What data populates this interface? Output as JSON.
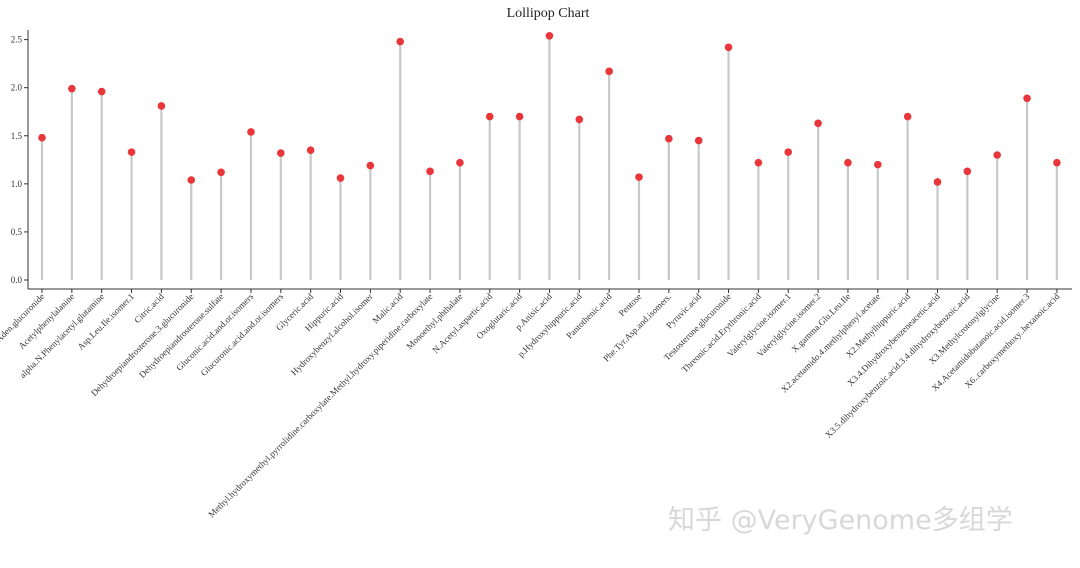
{
  "chart_data": {
    "type": "lollipop",
    "title": "Lollipop Chart",
    "xlabel": "",
    "ylabel": "",
    "ylim": [
      0,
      2.6
    ],
    "yticks": [
      "0.0",
      "0.5",
      "1.0",
      "1.5",
      "2.0",
      "2.5"
    ],
    "grid": false,
    "colors": {
      "point": "#e8363a",
      "stem": "#c8c8c8",
      "axis": "#333333"
    },
    "categories": [
      "Aden.glucuronide",
      "Acetylphenylalanine",
      "alpha.N.Phenylacetyl.glutamine",
      "Asp.Leu.Ile.isomer.1",
      "Citric.acid",
      "Dehydroepiandrosterone.3.glucuronide",
      "Dehydroepiandrosterone.sulfate",
      "Gluconic.acid.and.or.isomers",
      "Glucuronic.acid.and.or.isomers",
      "Glyceric.acid",
      "Hippuric.acid",
      "Hydroxybenzyl.alcohol.isomer",
      "Malic.acid",
      "Methyl.hydroxymethyl.pyrrolidine.carboxylate.Methyl.hydroxy.piperidine.carboxylate",
      "Monoethyl.phthalate",
      "N.Acetyl.aspartic.acid",
      "Oxoglutaric.acid",
      "p.Anisic.acid",
      "p.Hydroxyhippuric.acid",
      "Pantothenic.acid",
      "Pentose",
      "Phe.Tyr.Asp.and.isomers.",
      "Pyruvic.acid",
      "Testosterone.glucuronide",
      "Threonic.acid.Erythronic.acid",
      "Valerylglycine.isomer.1",
      "Valerylglycine.isomer.2",
      "X.gamma.Glu.Leu.Ile",
      "X2.acetamido.4.methylphenyl.acetate",
      "X2.Methylhippuric.acid",
      "X3.4.Dihydroxybenzeneacetic.acid",
      "X3.5.dihydroxybenzoic.acid.3.4.dihydroxybenzoic.acid",
      "X3.Methylcrotonylglycine",
      "X4.Acetamidobutanoic.acid.isomer.3",
      "X6..carboxymethoxy..hexanoic.acid"
    ],
    "values": [
      1.48,
      1.99,
      1.96,
      1.33,
      1.81,
      1.04,
      1.12,
      1.54,
      1.32,
      1.35,
      1.06,
      1.19,
      2.48,
      1.13,
      1.22,
      1.7,
      1.7,
      2.54,
      1.67,
      2.17,
      1.07,
      1.47,
      1.45,
      2.42,
      1.22,
      1.33,
      1.63,
      1.22,
      1.2,
      1.7,
      1.02,
      1.13,
      1.3,
      1.89,
      1.22
    ]
  },
  "watermark": "知乎 @VeryGenome多组学"
}
